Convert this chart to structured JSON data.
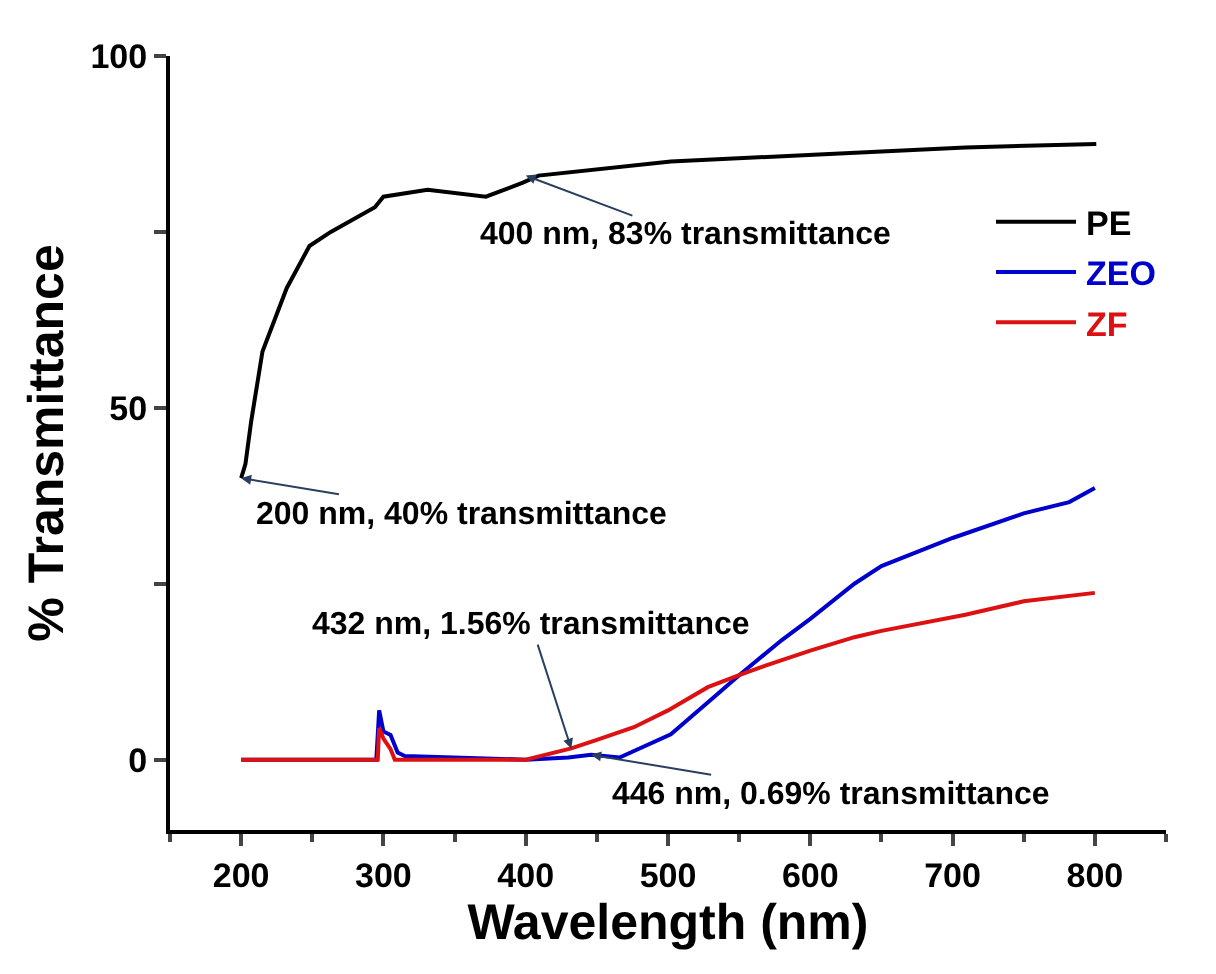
{
  "chart_data": {
    "type": "line",
    "xlabel": "Wavelength (nm)",
    "ylabel": "% Transmittance",
    "xlim": [
      150,
      850
    ],
    "ylim": [
      -10,
      100
    ],
    "xticks": [
      200,
      300,
      400,
      500,
      600,
      700,
      800
    ],
    "yticks": [
      0,
      {
        "value": 25,
        "label": null
      },
      50,
      {
        "value": 75,
        "label": null
      },
      100
    ],
    "legend": "right",
    "marker": "none",
    "line_style": "solid",
    "series": [
      {
        "name": "PE",
        "color": "#000000",
        "x": [
          200,
          203,
          207,
          215,
          232,
          248,
          263,
          294,
          300,
          331,
          372,
          398,
          409,
          502,
          606,
          709,
          801
        ],
        "values": [
          40,
          42,
          48,
          58,
          67,
          73,
          75,
          78.5,
          80,
          81,
          80,
          82,
          83,
          85,
          86,
          87,
          87.5
        ]
      },
      {
        "name": "ZEO",
        "color": "#0000cc",
        "x": [
          200,
          295,
          297,
          300,
          305,
          310,
          315,
          400,
          430,
          446,
          466,
          502,
          533,
          550,
          580,
          600,
          631,
          650,
          700,
          750,
          782,
          800
        ],
        "values": [
          0,
          0,
          7,
          4,
          3.5,
          1,
          0.5,
          0,
          0.3,
          0.7,
          0.3,
          3.6,
          9,
          12,
          17,
          20,
          25,
          27.5,
          31.5,
          35,
          36.6,
          38.6
        ]
      },
      {
        "name": "ZF",
        "color": "#dd1111",
        "x": [
          200,
          296,
          297,
          300,
          305,
          308,
          400,
          432,
          450,
          476,
          500,
          528,
          550,
          569,
          600,
          631,
          650,
          709,
          750,
          800
        ],
        "values": [
          0,
          0,
          4.5,
          3,
          1.5,
          0,
          0,
          1.6,
          2.8,
          4.6,
          7,
          10.3,
          12,
          13.4,
          15.5,
          17.4,
          18.3,
          20.6,
          22.5,
          23.7
        ]
      }
    ],
    "annotations": [
      {
        "text": "400 nm, 83% transmittance",
        "x": 400,
        "y": 83
      },
      {
        "text": "200 nm, 40% transmittance",
        "x": 200,
        "y": 40
      },
      {
        "text": "432 nm, 1.56% transmittance",
        "x": 432,
        "y": 1.56
      },
      {
        "text": "446 nm, 0.69% transmittance",
        "x": 446,
        "y": 0.69
      }
    ]
  }
}
